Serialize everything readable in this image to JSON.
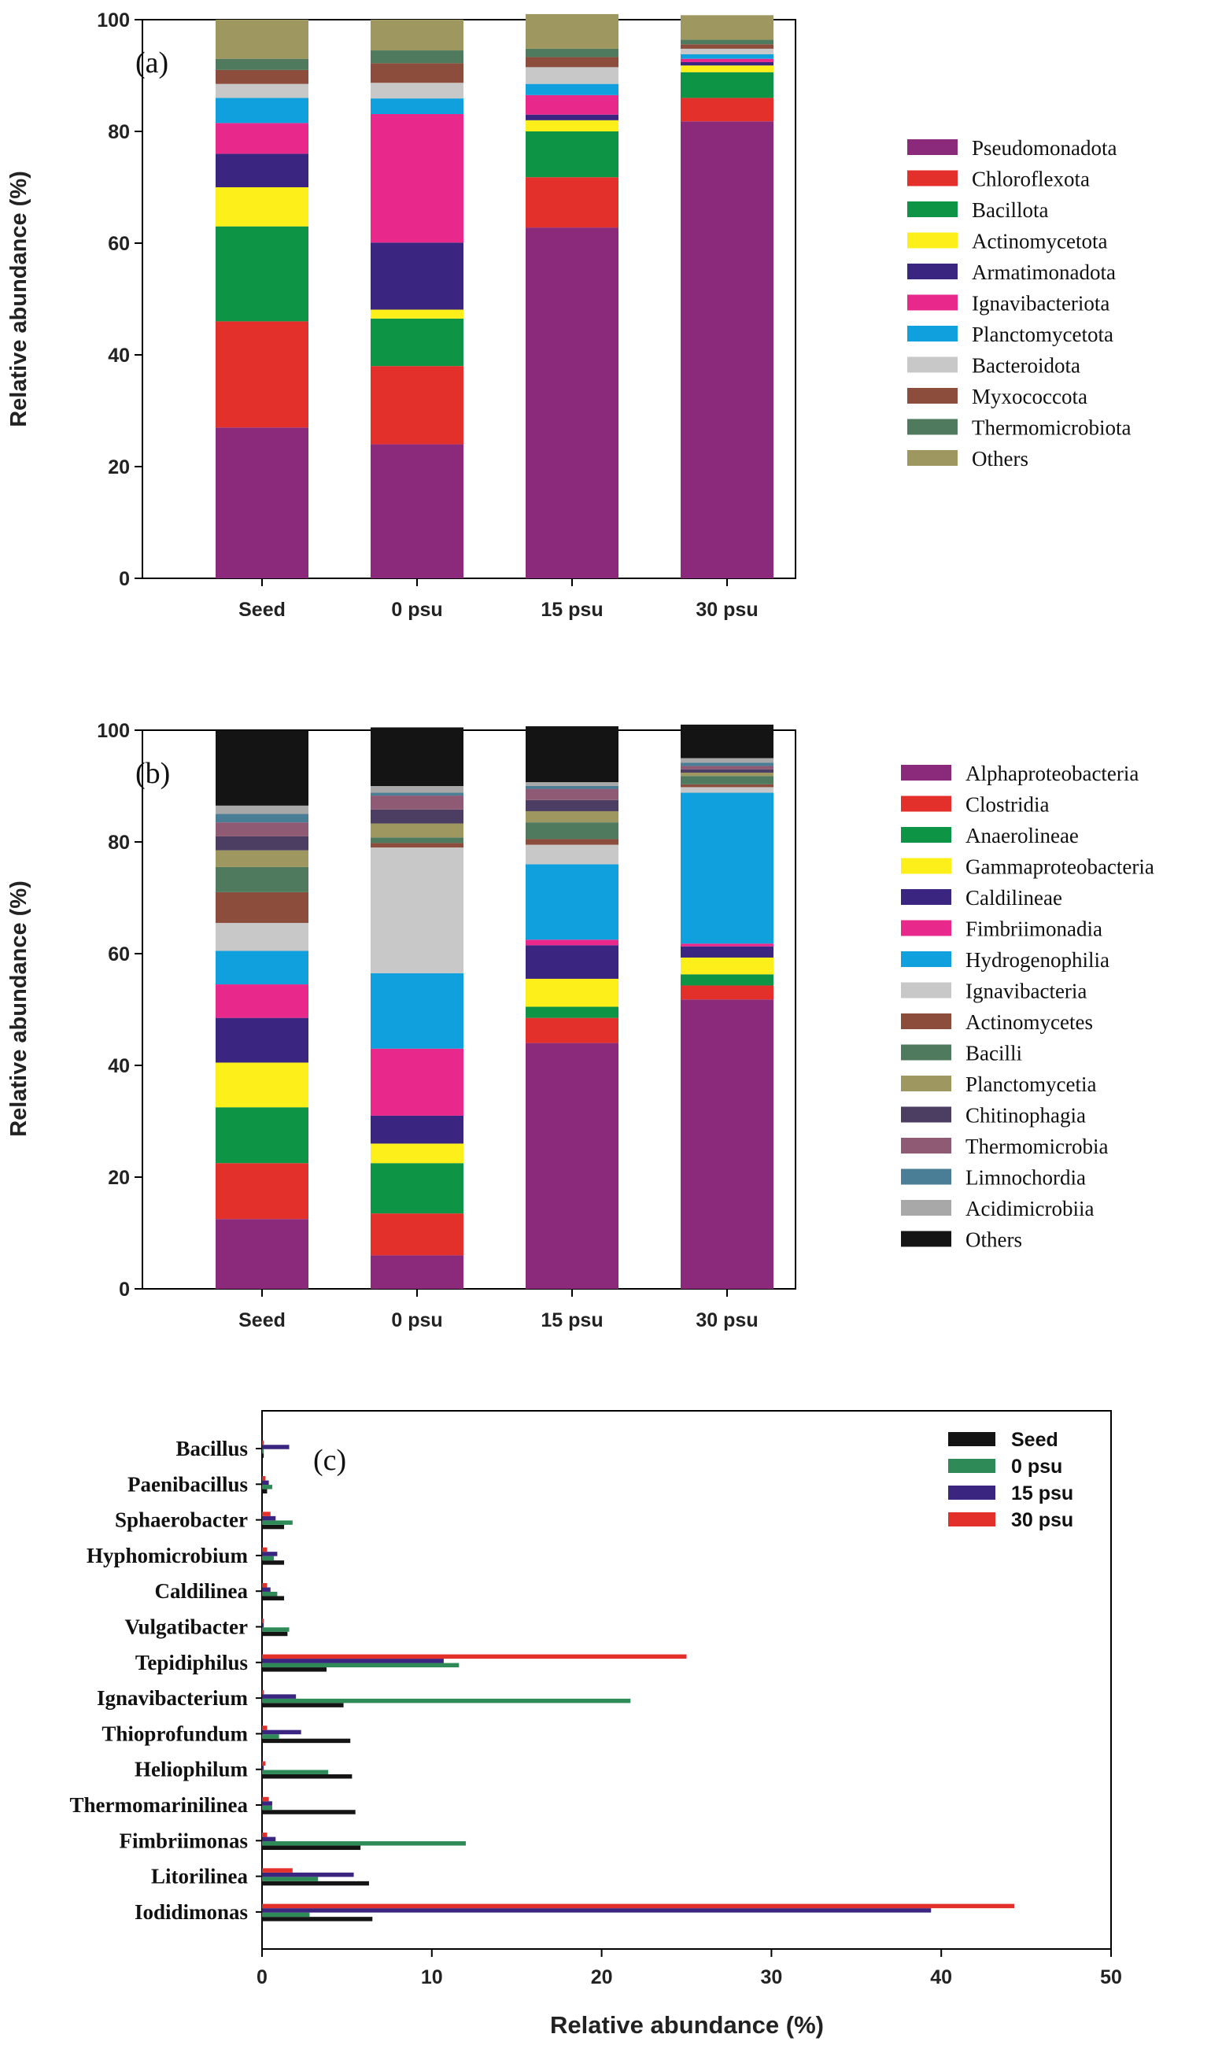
{
  "chart_data": [
    {
      "id": "a",
      "type": "bar",
      "stacked": true,
      "panel_label": "(a)",
      "categories": [
        "Seed",
        "0 psu",
        "15 psu",
        "30 psu"
      ],
      "ylabel": "Relative abundance (%)",
      "xlabel": "",
      "ylim": [
        0,
        100
      ],
      "yticks": [
        "0",
        "20",
        "40",
        "60",
        "80",
        "100"
      ],
      "legend_position": "right",
      "series": [
        {
          "name": "Pseudomonadota",
          "color": "#8B2A7B",
          "values": [
            27.0,
            24.0,
            62.8,
            81.8
          ]
        },
        {
          "name": "Chloroflexota",
          "color": "#E3302A",
          "values": [
            19.0,
            14.0,
            9.0,
            4.2
          ]
        },
        {
          "name": "Bacillota",
          "color": "#0E9445",
          "values": [
            17.0,
            8.5,
            8.2,
            4.6
          ]
        },
        {
          "name": "Actinomycetota",
          "color": "#FCEF1A",
          "values": [
            7.0,
            1.6,
            2.0,
            1.2
          ]
        },
        {
          "name": "Armatimonadota",
          "color": "#3A2680",
          "values": [
            6.0,
            12.0,
            1.0,
            0.6
          ]
        },
        {
          "name": "Ignavibacteriota",
          "color": "#E8288B",
          "values": [
            5.5,
            23.0,
            3.5,
            0.6
          ]
        },
        {
          "name": "Planctomycetota",
          "color": "#0FA0DD",
          "values": [
            4.5,
            2.8,
            2.0,
            0.8
          ]
        },
        {
          "name": "Bacteroidota",
          "color": "#C8C8C8",
          "values": [
            2.5,
            2.8,
            3.0,
            1.0
          ]
        },
        {
          "name": "Myxococcota",
          "color": "#8C4D3C",
          "values": [
            2.5,
            3.5,
            1.8,
            0.8
          ]
        },
        {
          "name": "Thermomicrobiota",
          "color": "#4F7A5E",
          "values": [
            2.0,
            2.3,
            1.5,
            0.8
          ]
        },
        {
          "name": "Others",
          "color": "#9E9760",
          "values": [
            7.0,
            5.5,
            6.2,
            4.4
          ]
        }
      ]
    },
    {
      "id": "b",
      "type": "bar",
      "stacked": true,
      "panel_label": "(b)",
      "categories": [
        "Seed",
        "0 psu",
        "15 psu",
        "30 psu"
      ],
      "ylabel": "Relative abundance (%)",
      "xlabel": "",
      "ylim": [
        0,
        100
      ],
      "yticks": [
        "0",
        "20",
        "40",
        "60",
        "80",
        "100"
      ],
      "legend_position": "right",
      "series": [
        {
          "name": "Alphaproteobacteria",
          "color": "#8B2A7B",
          "values": [
            12.5,
            6.0,
            44.0,
            51.8
          ]
        },
        {
          "name": "Clostridia",
          "color": "#E3302A",
          "values": [
            10.0,
            7.5,
            4.5,
            2.5
          ]
        },
        {
          "name": "Anaerolineae",
          "color": "#0E9445",
          "values": [
            10.0,
            9.0,
            2.0,
            2.0
          ]
        },
        {
          "name": "Gammaproteobacteria",
          "color": "#FCEF1A",
          "values": [
            8.0,
            3.5,
            5.0,
            3.0
          ]
        },
        {
          "name": "Caldilineae",
          "color": "#3A2680",
          "values": [
            8.0,
            5.0,
            6.0,
            2.0
          ]
        },
        {
          "name": "Fimbriimonadia",
          "color": "#E8288B",
          "values": [
            6.0,
            12.0,
            1.0,
            0.5
          ]
        },
        {
          "name": "Hydrogenophilia",
          "color": "#0FA0DD",
          "values": [
            6.0,
            13.5,
            13.5,
            27.0
          ]
        },
        {
          "name": "Ignavibacteria",
          "color": "#C8C8C8",
          "values": [
            5.0,
            22.5,
            3.5,
            1.0
          ]
        },
        {
          "name": "Actinomycetes",
          "color": "#8C4D3C",
          "values": [
            5.5,
            0.8,
            1.0,
            0.5
          ]
        },
        {
          "name": "Bacilli",
          "color": "#4F7A5E",
          "values": [
            4.5,
            1.0,
            3.0,
            1.5
          ]
        },
        {
          "name": "Planctomycetia",
          "color": "#9E9760",
          "values": [
            3.0,
            2.5,
            2.0,
            0.6
          ]
        },
        {
          "name": "Chitinophagia",
          "color": "#4B3E62",
          "values": [
            2.5,
            2.5,
            2.0,
            0.6
          ]
        },
        {
          "name": "Thermomicrobia",
          "color": "#8E5A74",
          "values": [
            2.5,
            2.5,
            2.0,
            0.6
          ]
        },
        {
          "name": "Limnochordia",
          "color": "#4A7E96",
          "values": [
            1.5,
            0.5,
            0.5,
            0.6
          ]
        },
        {
          "name": "Acidimicrobiia",
          "color": "#A8A8A8",
          "values": [
            1.5,
            1.2,
            0.7,
            0.8
          ]
        },
        {
          "name": "Others",
          "color": "#141414",
          "values": [
            13.5,
            10.5,
            10.0,
            6.0
          ]
        }
      ]
    },
    {
      "id": "c",
      "type": "bar",
      "orientation": "horizontal",
      "panel_label": "(c)",
      "categories": [
        "Bacillus",
        "Paenibacillus",
        "Sphaerobacter",
        "Hyphomicrobium",
        "Caldilinea",
        "Vulgatibacter",
        "Tepidiphilus",
        "Ignavibacterium",
        "Thioprofundum",
        "Heliophilum",
        "Thermomarinilinea",
        "Fimbriimonas",
        "Litorilinea",
        "Iodidimonas"
      ],
      "xlabel": "Relative abundance (%)",
      "ylabel": "",
      "xlim": [
        0,
        50
      ],
      "xticks": [
        "0",
        "10",
        "20",
        "30",
        "40",
        "50"
      ],
      "legend_position": "top-right",
      "series": [
        {
          "name": "Seed",
          "color": "#141414",
          "values": [
            0.1,
            0.3,
            1.3,
            1.3,
            1.3,
            1.5,
            3.8,
            4.8,
            5.2,
            5.3,
            5.5,
            5.8,
            6.3,
            6.5
          ]
        },
        {
          "name": "0 psu",
          "color": "#2E8B57",
          "values": [
            0.1,
            0.6,
            1.8,
            0.7,
            0.9,
            1.6,
            11.6,
            21.7,
            1.0,
            3.9,
            0.6,
            12.0,
            3.3,
            2.8
          ]
        },
        {
          "name": "15 psu",
          "color": "#3A2680",
          "values": [
            1.6,
            0.4,
            0.8,
            0.9,
            0.5,
            0.1,
            10.7,
            2.0,
            2.3,
            0.1,
            0.6,
            0.8,
            5.4,
            39.4
          ]
        },
        {
          "name": "30 psu",
          "color": "#E3302A",
          "values": [
            0.1,
            0.2,
            0.5,
            0.3,
            0.3,
            0.1,
            25.0,
            0.1,
            0.3,
            0.2,
            0.4,
            0.3,
            1.8,
            44.3
          ]
        }
      ]
    }
  ]
}
